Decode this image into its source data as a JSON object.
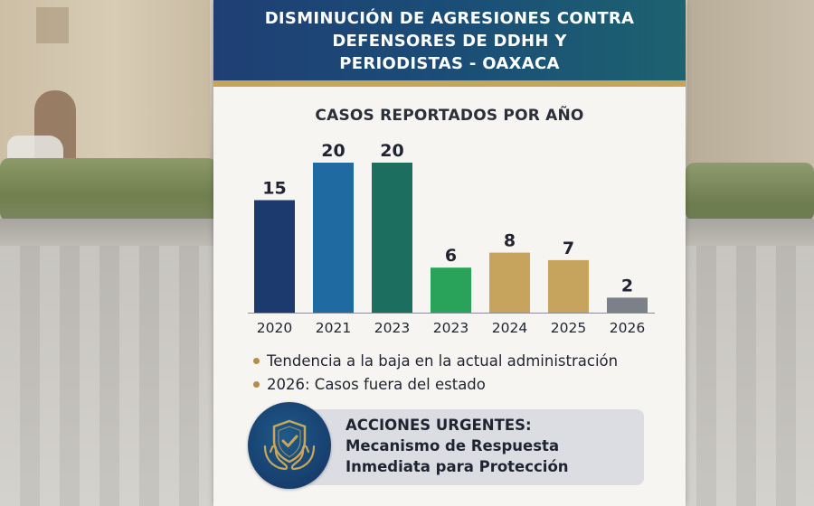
{
  "header": {
    "title_lines": [
      "DISMINUCIÓN DE AGRESIONES CONTRA",
      "DEFENSORES DE DDHH Y",
      "PERIODISTAS - OAXACA"
    ]
  },
  "chart_data": {
    "type": "bar",
    "title": "CASOS REPORTADOS POR AÑO",
    "categories": [
      "2020",
      "2021",
      "2023",
      "2023",
      "2024",
      "2025",
      "2026"
    ],
    "values": [
      15,
      20,
      20,
      6,
      8,
      7,
      2
    ],
    "bar_colors": [
      "#1c3a6e",
      "#1f6aa0",
      "#1c6e5e",
      "#2aa35a",
      "#c7a45e",
      "#c7a45e",
      "#7b8089"
    ],
    "xlabel": "",
    "ylabel": "",
    "ylim": [
      0,
      20
    ],
    "grid": false,
    "data_labels": true
  },
  "notes": [
    "Tendencia a la baja en la actual administración",
    "2026: Casos fuera del estado"
  ],
  "note_bullet_color": "#b58d4a",
  "actions": {
    "heading": "ACCIONES URGENTES:",
    "lines": [
      "Mecanismo de Respuesta",
      "Inmediata para Protección"
    ],
    "icon": "shield-check-hands-icon",
    "icon_color": "#c9a65a"
  }
}
